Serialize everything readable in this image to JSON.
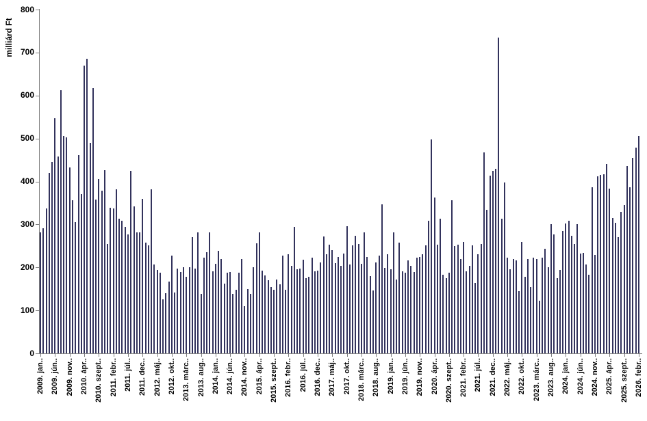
{
  "chart_data": {
    "type": "bar",
    "title": "",
    "xlabel": "",
    "ylabel": "milliárd Ft",
    "ylim": [
      0,
      800
    ],
    "y_ticks": [
      0,
      100,
      200,
      300,
      400,
      500,
      600,
      700,
      800
    ],
    "grid": false,
    "legend": false,
    "bar_color": "#32325c",
    "axis_color": "#7f7f7f",
    "text_color": "#000000",
    "start_month": "2009. jan",
    "months_per_tick": 5,
    "x_tick_labels": [
      "2009. jan..",
      "2009. jún..",
      "2009. nov..",
      "2010. ápr..",
      "2010. szept..",
      "2011. febr..",
      "2011. júl..",
      "2011. dec..",
      "2012. máj..",
      "2012. okt..",
      "2013. márc..",
      "2013. aug..",
      "2014. jan..",
      "2014. jún..",
      "2014. nov..",
      "2015. ápr..",
      "2015. szept..",
      "2016. febr..",
      "2016. júl..",
      "2016. dec..",
      "2017. máj..",
      "2017. okt..",
      "2018. márc..",
      "2018. aug..",
      "2019. jan..",
      "2019. jún..",
      "2019. nov..",
      "2020. ápr..",
      "2020. szept..",
      "2021. febr..",
      "2021. júl..",
      "2021. dec..",
      "2022. máj..",
      "2022. okt..",
      "2023. márc..",
      "2023. aug..",
      "2024. jan..",
      "2024. jún..",
      "2024. nov..",
      "2025. ápr..",
      "2025. szept..",
      "2026. febr.."
    ],
    "values": [
      282,
      291,
      337,
      420,
      445,
      547,
      458,
      613,
      505,
      502,
      433,
      356,
      305,
      462,
      371,
      670,
      685,
      490,
      617,
      358,
      406,
      379,
      427,
      254,
      339,
      337,
      381,
      313,
      308,
      294,
      276,
      424,
      342,
      281,
      281,
      360,
      257,
      252,
      382,
      207,
      194,
      188,
      125,
      140,
      167,
      228,
      142,
      198,
      189,
      201,
      178,
      201,
      270,
      198,
      282,
      139,
      223,
      236,
      282,
      191,
      209,
      239,
      220,
      162,
      188,
      190,
      138,
      148,
      188,
      220,
      110,
      150,
      139,
      201,
      256,
      281,
      192,
      181,
      170,
      155,
      148,
      172,
      160,
      228,
      148,
      231,
      204,
      295,
      196,
      198,
      218,
      175,
      178,
      223,
      191,
      192,
      212,
      272,
      230,
      253,
      240,
      210,
      224,
      204,
      232,
      296,
      207,
      251,
      273,
      254,
      209,
      281,
      225,
      180,
      146,
      212,
      228,
      347,
      199,
      231,
      196,
      281,
      172,
      257,
      191,
      188,
      217,
      204,
      190,
      223,
      225,
      231,
      252,
      309,
      498,
      363,
      253,
      313,
      183,
      175,
      188,
      356,
      249,
      253,
      220,
      260,
      191,
      204,
      252,
      164,
      231,
      254,
      467,
      334,
      413,
      425,
      429,
      735,
      314,
      397,
      223,
      196,
      220,
      216,
      144,
      260,
      178,
      220,
      155,
      223,
      220,
      122,
      223,
      243,
      201,
      300,
      276,
      175,
      194,
      284,
      302,
      309,
      273,
      254,
      301,
      233,
      234,
      207,
      183,
      386,
      229,
      412,
      415,
      417,
      440,
      384,
      315,
      303,
      270,
      330,
      345,
      435,
      387,
      455,
      478,
      505
    ]
  }
}
